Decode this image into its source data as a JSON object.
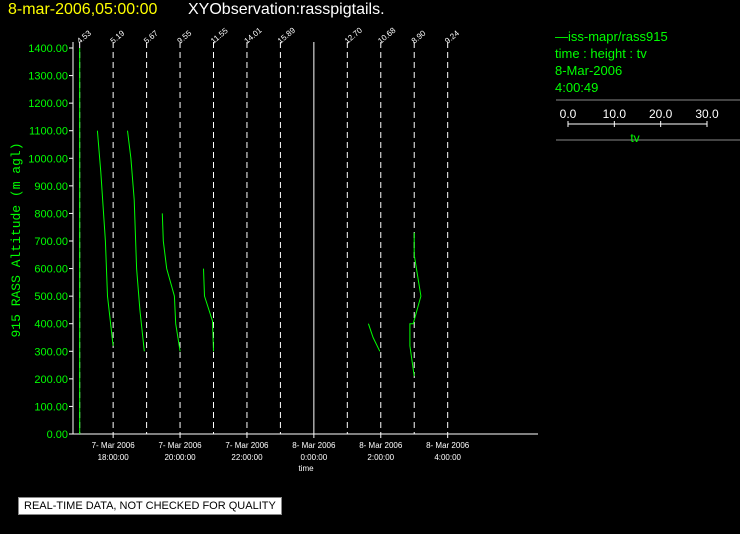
{
  "header": {
    "time": "8-mar-2006,05:00:00",
    "title": "XYObservation:rasspigtails."
  },
  "legend": {
    "series": "—iss-mapr/rass915",
    "vars": "time : height : tv",
    "date": "8-Mar-2006",
    "time": "4:00:49",
    "scale_ticks": [
      "0.0",
      "10.0",
      "20.0",
      "30.0"
    ],
    "scale_label": "tv"
  },
  "footer": {
    "quality": "REAL-TIME DATA, NOT CHECKED FOR QUALITY"
  },
  "colors": {
    "background": "#000000",
    "axis": "#ffffff",
    "data": "#00ff00",
    "header_time": "#ffff00"
  },
  "chart_data": {
    "type": "line",
    "xlabel": "time",
    "ylabel": "915 RASS Altitude (m agl)",
    "ylim": [
      0,
      1400
    ],
    "xlim_hours": [
      -7.2,
      6.7
    ],
    "yticks": [
      "0.00",
      "100.00",
      "200.00",
      "300.00",
      "400.00",
      "500.00",
      "600.00",
      "700.00",
      "800.00",
      "900.00",
      "1000.00",
      "1100.00",
      "1200.00",
      "1300.00",
      "1400.00"
    ],
    "xticks": [
      {
        "date": "7- Mar 2006",
        "time": "18:00:00",
        "hour": -6
      },
      {
        "date": "7- Mar 2006",
        "time": "20:00:00",
        "hour": -4
      },
      {
        "date": "7- Mar 2006",
        "time": "22:00:00",
        "hour": -2
      },
      {
        "date": "8- Mar 2006",
        "time": "0:00:00",
        "hour": 0
      },
      {
        "date": "8- Mar 2006",
        "time": "2:00:00",
        "hour": 2
      },
      {
        "date": "8- Mar 2006",
        "time": "4:00:00",
        "hour": 4
      }
    ],
    "profiles": [
      {
        "hour": -7.0,
        "label": "4.53"
      },
      {
        "hour": -6.0,
        "label": "5.19"
      },
      {
        "hour": -5.0,
        "label": "5.67"
      },
      {
        "hour": -4.0,
        "label": "9.55"
      },
      {
        "hour": -3.0,
        "label": "11.55"
      },
      {
        "hour": -2.0,
        "label": "14.01"
      },
      {
        "hour": -1.0,
        "label": "15.89"
      },
      {
        "hour": 0.0,
        "label": ""
      },
      {
        "hour": 1.0,
        "label": "12.70"
      },
      {
        "hour": 2.0,
        "label": "10.68"
      },
      {
        "hour": 3.0,
        "label": "8.90"
      },
      {
        "hour": 4.0,
        "label": "9.24"
      }
    ],
    "traces": [
      {
        "base": -7.0,
        "points": [
          [
            0.0,
            1400
          ],
          [
            0.0,
            0
          ]
        ]
      },
      {
        "base": -6.0,
        "points": [
          [
            -0.47,
            1100
          ],
          [
            -0.37,
            950
          ],
          [
            -0.23,
            700
          ],
          [
            -0.17,
            500
          ],
          [
            0.0,
            320
          ]
        ]
      },
      {
        "base": -5.0,
        "points": [
          [
            -0.57,
            1100
          ],
          [
            -0.47,
            1000
          ],
          [
            -0.37,
            850
          ],
          [
            -0.3,
            600
          ],
          [
            -0.2,
            450
          ],
          [
            -0.07,
            300
          ]
        ]
      },
      {
        "base": -4.0,
        "points": [
          [
            -0.53,
            800
          ],
          [
            -0.5,
            700
          ],
          [
            -0.4,
            600
          ],
          [
            -0.17,
            500
          ],
          [
            -0.13,
            400
          ],
          [
            0.0,
            300
          ]
        ]
      },
      {
        "base": -3.0,
        "points": [
          [
            -0.3,
            600
          ],
          [
            -0.27,
            500
          ],
          [
            -0.03,
            410
          ],
          [
            0.0,
            300
          ]
        ]
      },
      {
        "base": 2.0,
        "points": [
          [
            -0.37,
            400
          ],
          [
            -0.23,
            350
          ],
          [
            -0.03,
            300
          ]
        ]
      },
      {
        "base": 3.0,
        "points": [
          [
            0.0,
            730
          ],
          [
            0.0,
            650
          ],
          [
            0.2,
            500
          ],
          [
            -0.03,
            400
          ],
          [
            -0.13,
            400
          ],
          [
            -0.13,
            320
          ],
          [
            0.0,
            210
          ]
        ]
      }
    ]
  }
}
